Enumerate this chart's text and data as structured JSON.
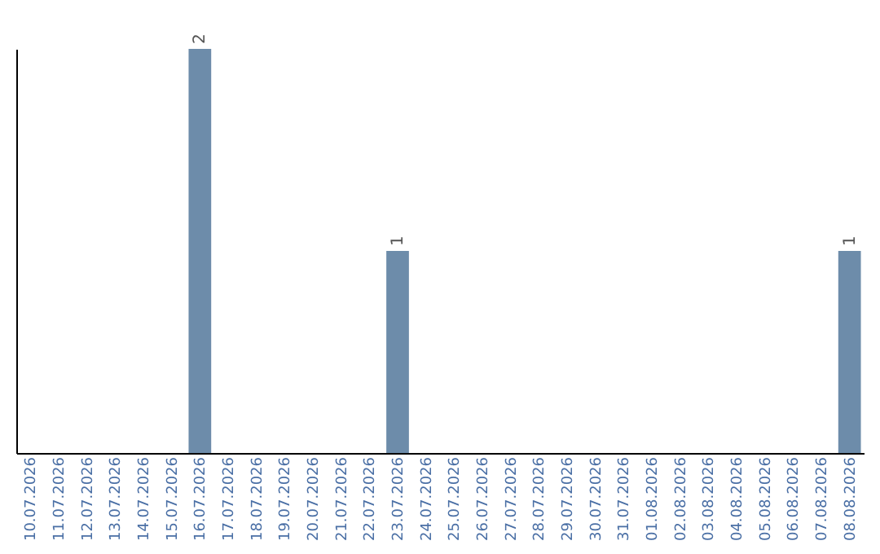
{
  "chart_data": {
    "type": "bar",
    "categories": [
      "10.07.2026",
      "11.07.2026",
      "12.07.2026",
      "13.07.2026",
      "14.07.2026",
      "15.07.2026",
      "16.07.2026",
      "17.07.2026",
      "18.07.2026",
      "19.07.2026",
      "20.07.2026",
      "21.07.2026",
      "22.07.2026",
      "23.07.2026",
      "24.07.2026",
      "25.07.2026",
      "26.07.2026",
      "27.07.2026",
      "28.07.2026",
      "29.07.2026",
      "30.07.2026",
      "31.07.2026",
      "01.08.2026",
      "02.08.2026",
      "03.08.2026",
      "04.08.2026",
      "05.08.2026",
      "06.08.2026",
      "07.08.2026",
      "08.08.2026"
    ],
    "values": [
      0,
      0,
      0,
      0,
      0,
      0,
      2,
      0,
      0,
      0,
      0,
      0,
      0,
      1,
      0,
      0,
      0,
      0,
      0,
      0,
      0,
      0,
      0,
      0,
      0,
      0,
      0,
      0,
      0,
      1
    ],
    "value_labels": [
      null,
      null,
      null,
      null,
      null,
      null,
      "2",
      null,
      null,
      null,
      null,
      null,
      null,
      "1",
      null,
      null,
      null,
      null,
      null,
      null,
      null,
      null,
      null,
      null,
      null,
      null,
      null,
      null,
      null,
      "1"
    ],
    "color": "#6d8caa",
    "tick_labels": "x",
    "grid": false
  }
}
